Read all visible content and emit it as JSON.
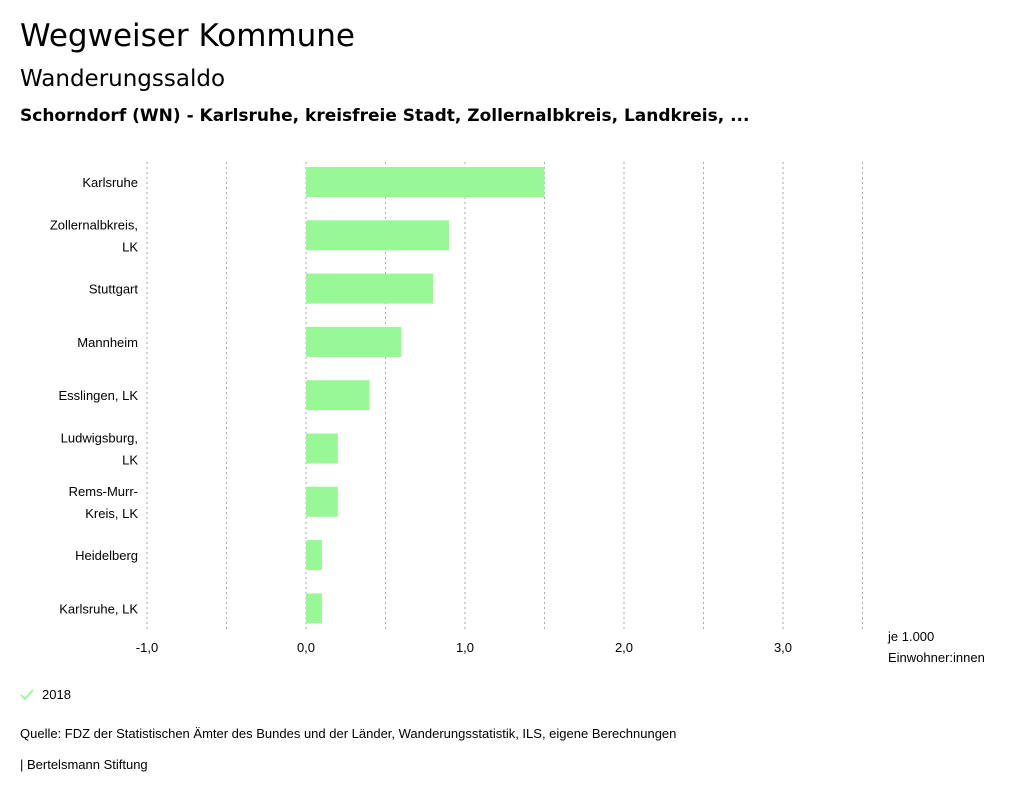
{
  "header": {
    "title": "Wegweiser Kommune",
    "subtitle": "Wanderungssaldo",
    "selection": "Schorndorf (WN) - Karlsruhe, kreisfreie Stadt, Zollernalbkreis, Landkreis, ..."
  },
  "chart_data": {
    "type": "bar",
    "orientation": "horizontal",
    "categories": [
      [
        "Karlsruhe"
      ],
      [
        "Zollernalbkreis,",
        "LK"
      ],
      [
        "Stuttgart"
      ],
      [
        "Mannheim"
      ],
      [
        "Esslingen, LK"
      ],
      [
        "Ludwigsburg,",
        "LK"
      ],
      [
        "Rems-Murr-",
        "Kreis, LK"
      ],
      [
        "Heidelberg"
      ],
      [
        "Karlsruhe, LK"
      ]
    ],
    "series": [
      {
        "name": "2018",
        "values": [
          1.5,
          0.9,
          0.8,
          0.6,
          0.4,
          0.2,
          0.2,
          0.1,
          0.1
        ]
      }
    ],
    "xlim": [
      -1.0,
      3.5
    ],
    "xticks": [
      -1.0,
      0.0,
      1.0,
      2.0,
      3.0
    ],
    "xtick_labels": [
      "-1,0",
      "0,0",
      "1,0",
      "2,0",
      "3,0"
    ],
    "gridlines": [
      -1.0,
      -0.5,
      0.0,
      0.5,
      1.0,
      1.5,
      2.0,
      2.5,
      3.0,
      3.5
    ],
    "xlabel": [
      "je 1.000",
      "Einwohner:innen"
    ],
    "grid": true,
    "legend_position": "bottom-left",
    "bar_color": "#98f895"
  },
  "legend": {
    "label": "2018",
    "icon": "check-icon"
  },
  "footer": {
    "source": "Quelle: FDZ der Statistischen Ämter des Bundes und der Länder, Wanderungsstatistik, ILS, eigene Berechnungen",
    "brand": "| Bertelsmann Stiftung"
  }
}
